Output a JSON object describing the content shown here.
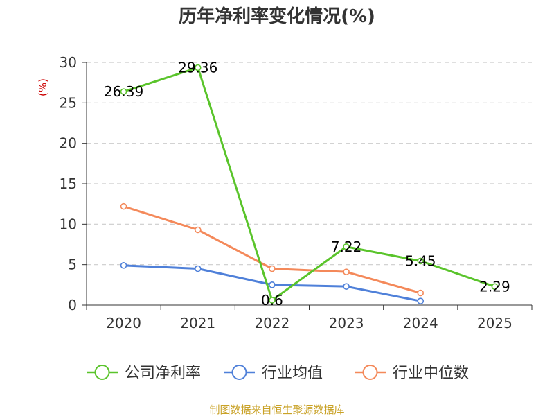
{
  "chart_data": {
    "type": "line",
    "title": "历年净利率变化情况(%)",
    "ylabel": "(%)",
    "categories": [
      "2020",
      "2021",
      "2022",
      "2023",
      "2024",
      "2025"
    ],
    "ylim": [
      0,
      30
    ],
    "yticks": [
      "0",
      "5",
      "10",
      "15",
      "20",
      "25",
      "30"
    ],
    "grid": true,
    "legend_position": "bottom",
    "series": [
      {
        "name": "公司净利率",
        "color": "#5ac42b",
        "values": [
          26.39,
          29.36,
          0.6,
          7.22,
          5.45,
          2.29
        ],
        "labels": [
          "26.39",
          "29.36",
          "0.6",
          "7.22",
          "5.45",
          "2.29"
        ]
      },
      {
        "name": "行业均值",
        "color": "#4f80d9",
        "values": [
          4.9,
          4.5,
          2.5,
          2.3,
          0.5,
          null
        ]
      },
      {
        "name": "行业中位数",
        "color": "#f4895a",
        "values": [
          12.2,
          9.3,
          4.5,
          4.1,
          1.5,
          null
        ]
      }
    ]
  },
  "source": "制图数据来自恒生聚源数据库"
}
